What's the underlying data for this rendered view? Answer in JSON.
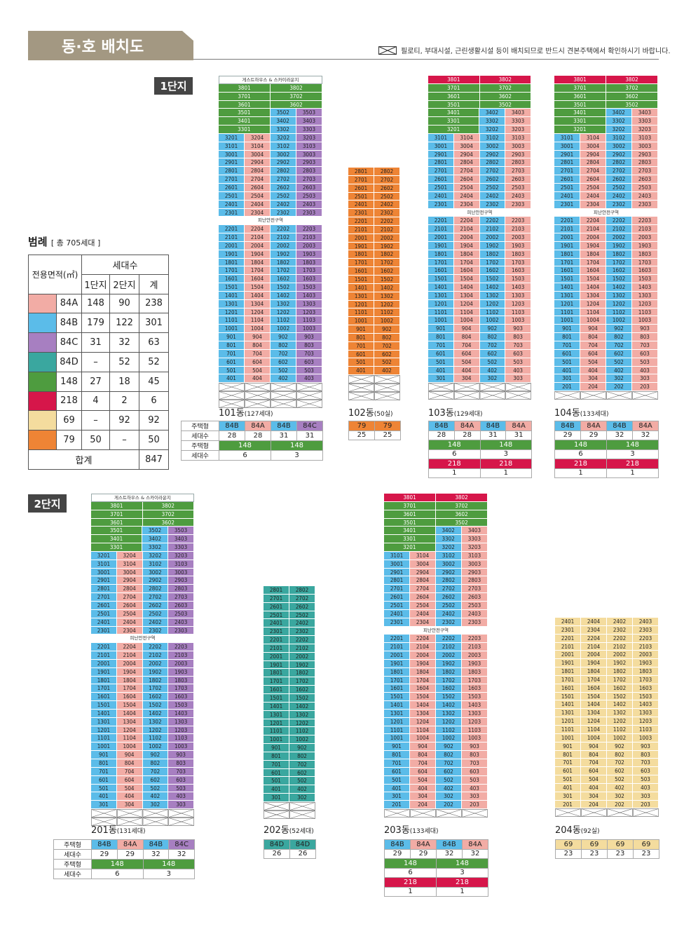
{
  "header": {
    "title": "동·호 배치도",
    "notice": "필로티, 부대시설, 근린생활시설 등이 배치되므로 반드시 견본주택에서 확인하시기 바랍니다."
  },
  "colors": {
    "84A": "#f2aca5",
    "84B": "#5bbce9",
    "84C": "#a77fc1",
    "84D": "#3aa79f",
    "148": "#4e9c3f",
    "218": "#d6164a",
    "69": "#f4dc9e",
    "79": "#ee8435"
  },
  "complexes": {
    "c1": "1단지",
    "c2": "2단지"
  },
  "legend": {
    "title": "범례",
    "total": "[ 총 705세대 ]",
    "head_area": "전용면적(㎡)",
    "head_units": "세대수",
    "head_c1": "1단지",
    "head_c2": "2단지",
    "head_total": "계",
    "rows": [
      {
        "type": "84A",
        "c1": "148",
        "c2": "90",
        "total": "238"
      },
      {
        "type": "84B",
        "c1": "179",
        "c2": "122",
        "total": "301"
      },
      {
        "type": "84C",
        "c1": "31",
        "c2": "32",
        "total": "63"
      },
      {
        "type": "84D",
        "c1": "–",
        "c2": "52",
        "total": "52"
      },
      {
        "type": "148",
        "c1": "27",
        "c2": "18",
        "total": "45"
      },
      {
        "type": "218",
        "c1": "4",
        "c2": "2",
        "total": "6"
      },
      {
        "type": "69",
        "c1": "–",
        "c2": "92",
        "total": "92"
      },
      {
        "type": "79",
        "c1": "50",
        "c2": "–",
        "total": "50"
      }
    ],
    "sum_label": "합계",
    "sum": "847"
  },
  "table_labels": {
    "type": "주택형",
    "units": "세대수"
  },
  "bar_texts": {
    "guest": "게스트하우스 & 스카이라운지",
    "refuge": "피난안전구역"
  },
  "buildings": [
    {
      "id": "101",
      "name": "101동",
      "count": "(127세대)",
      "top_bar": true,
      "low_types": [
        "84B",
        "84A",
        "84B",
        "84C"
      ],
      "top_floor": 38,
      "specials": {
        "38": [
          {
            "u": "3801",
            "t": "148",
            "s": 2
          },
          {
            "u": "3802",
            "t": "148",
            "s": 2
          }
        ],
        "37": [
          {
            "u": "3701",
            "t": "148",
            "s": 2
          },
          {
            "u": "3702",
            "t": "148",
            "s": 2
          }
        ],
        "36": [
          {
            "u": "3601",
            "t": "148",
            "s": 2
          },
          {
            "u": "3602",
            "t": "148",
            "s": 2
          }
        ],
        "35": [
          {
            "u": "3501",
            "t": "148",
            "s": 2
          },
          {
            "u": "3502",
            "t": "84B",
            "s": 1
          },
          {
            "u": "3503",
            "t": "84C",
            "s": 1
          }
        ],
        "34": [
          {
            "u": "3401",
            "t": "148",
            "s": 2
          },
          {
            "u": "3402",
            "t": "84B",
            "s": 1
          },
          {
            "u": "3403",
            "t": "84C",
            "s": 1
          }
        ],
        "33": [
          {
            "u": "3301",
            "t": "148",
            "s": 2
          },
          {
            "u": "3302",
            "t": "84B",
            "s": 1
          },
          {
            "u": "3303",
            "t": "84C",
            "s": 1
          }
        ]
      },
      "refuge_after": 23,
      "low_floor": 4,
      "pilotis": 3,
      "summary": {
        "types": [
          "84B",
          "84A",
          "84B",
          "84C"
        ],
        "units": [
          "28",
          "28",
          "31",
          "31"
        ],
        "extra": [
          {
            "type": "148",
            "units": [
              "6",
              "3"
            ]
          }
        ]
      }
    },
    {
      "id": "102",
      "name": "102동",
      "count": "(50실)",
      "top_bar": false,
      "low_types": [
        "79",
        "79"
      ],
      "top_floor": 28,
      "specials": {},
      "refuge_after": null,
      "low_floor": 4,
      "pilotis": 3,
      "summary": {
        "types": [
          "79",
          "79"
        ],
        "units": [
          "25",
          "25"
        ],
        "extra": []
      }
    },
    {
      "id": "103",
      "name": "103동",
      "count": "(129세대)",
      "top_bar": false,
      "low_types": [
        "84B",
        "84A",
        "84B",
        "84A"
      ],
      "top_floor": 38,
      "specials": {
        "38": [
          {
            "u": "3801",
            "t": "218",
            "s": 2
          },
          {
            "u": "3802",
            "t": "218",
            "s": 2
          }
        ],
        "37": [
          {
            "u": "3701",
            "t": "148",
            "s": 2
          },
          {
            "u": "3702",
            "t": "148",
            "s": 2
          }
        ],
        "36": [
          {
            "u": "3601",
            "t": "148",
            "s": 2
          },
          {
            "u": "3602",
            "t": "148",
            "s": 2
          }
        ],
        "35": [
          {
            "u": "3501",
            "t": "148",
            "s": 2
          },
          {
            "u": "3502",
            "t": "148",
            "s": 2
          }
        ],
        "34": [
          {
            "u": "3401",
            "t": "148",
            "s": 2
          },
          {
            "u": "3402",
            "t": "84B",
            "s": 1
          },
          {
            "u": "3403",
            "t": "84A",
            "s": 1
          }
        ],
        "33": [
          {
            "u": "3301",
            "t": "148",
            "s": 2
          },
          {
            "u": "3302",
            "t": "84B",
            "s": 1
          },
          {
            "u": "3303",
            "t": "84A",
            "s": 1
          }
        ],
        "32": [
          {
            "u": "3201",
            "t": "148",
            "s": 2
          },
          {
            "u": "3202",
            "t": "84B",
            "s": 1
          },
          {
            "u": "3203",
            "t": "84A",
            "s": 1
          }
        ]
      },
      "refuge_after": 23,
      "low_floor": 3,
      "pilotis": 2,
      "summary": {
        "types": [
          "84B",
          "84A",
          "84B",
          "84A"
        ],
        "units": [
          "28",
          "28",
          "31",
          "31"
        ],
        "extra": [
          {
            "type": "148",
            "units": [
              "6",
              "3"
            ]
          },
          {
            "type": "218",
            "units": [
              "1",
              "1"
            ]
          }
        ]
      }
    },
    {
      "id": "104",
      "name": "104동",
      "count": "(133세대)",
      "top_bar": false,
      "low_types": [
        "84B",
        "84A",
        "84B",
        "84A"
      ],
      "top_floor": 38,
      "specials": {
        "38": [
          {
            "u": "3801",
            "t": "218",
            "s": 2
          },
          {
            "u": "3802",
            "t": "218",
            "s": 2
          }
        ],
        "37": [
          {
            "u": "3701",
            "t": "148",
            "s": 2
          },
          {
            "u": "3702",
            "t": "148",
            "s": 2
          }
        ],
        "36": [
          {
            "u": "3601",
            "t": "148",
            "s": 2
          },
          {
            "u": "3602",
            "t": "148",
            "s": 2
          }
        ],
        "35": [
          {
            "u": "3501",
            "t": "148",
            "s": 2
          },
          {
            "u": "3502",
            "t": "148",
            "s": 2
          }
        ],
        "34": [
          {
            "u": "3401",
            "t": "148",
            "s": 2
          },
          {
            "u": "3402",
            "t": "84B",
            "s": 1
          },
          {
            "u": "3403",
            "t": "84A",
            "s": 1
          }
        ],
        "33": [
          {
            "u": "3301",
            "t": "148",
            "s": 2
          },
          {
            "u": "3302",
            "t": "84B",
            "s": 1
          },
          {
            "u": "3303",
            "t": "84A",
            "s": 1
          }
        ],
        "32": [
          {
            "u": "3201",
            "t": "148",
            "s": 2
          },
          {
            "u": "3202",
            "t": "84B",
            "s": 1
          },
          {
            "u": "3203",
            "t": "84A",
            "s": 1
          }
        ]
      },
      "refuge_after": 23,
      "low_floor": 2,
      "pilotis": 1,
      "summary": {
        "types": [
          "84B",
          "84A",
          "84B",
          "84A"
        ],
        "units": [
          "29",
          "29",
          "32",
          "32"
        ],
        "extra": [
          {
            "type": "148",
            "units": [
              "6",
              "3"
            ]
          },
          {
            "type": "218",
            "units": [
              "1",
              "1"
            ]
          }
        ]
      }
    },
    {
      "id": "201",
      "name": "201동",
      "count": "(131세대)",
      "top_bar": true,
      "low_types": [
        "84B",
        "84A",
        "84B",
        "84C"
      ],
      "top_floor": 38,
      "specials": {
        "38": [
          {
            "u": "3801",
            "t": "148",
            "s": 2
          },
          {
            "u": "3802",
            "t": "148",
            "s": 2
          }
        ],
        "37": [
          {
            "u": "3701",
            "t": "148",
            "s": 2
          },
          {
            "u": "3702",
            "t": "148",
            "s": 2
          }
        ],
        "36": [
          {
            "u": "3601",
            "t": "148",
            "s": 2
          },
          {
            "u": "3602",
            "t": "148",
            "s": 2
          }
        ],
        "35": [
          {
            "u": "3501",
            "t": "148",
            "s": 2
          },
          {
            "u": "3502",
            "t": "84B",
            "s": 1
          },
          {
            "u": "3503",
            "t": "84C",
            "s": 1
          }
        ],
        "34": [
          {
            "u": "3401",
            "t": "148",
            "s": 2
          },
          {
            "u": "3402",
            "t": "84B",
            "s": 1
          },
          {
            "u": "3403",
            "t": "84C",
            "s": 1
          }
        ],
        "33": [
          {
            "u": "3301",
            "t": "148",
            "s": 2
          },
          {
            "u": "3302",
            "t": "84B",
            "s": 1
          },
          {
            "u": "3303",
            "t": "84C",
            "s": 1
          }
        ]
      },
      "refuge_after": 23,
      "low_floor": 3,
      "pilotis": 2,
      "summary": {
        "types": [
          "84B",
          "84A",
          "84B",
          "84C"
        ],
        "units": [
          "29",
          "29",
          "32",
          "32"
        ],
        "extra": [
          {
            "type": "148",
            "units": [
              "6",
              "3"
            ]
          }
        ]
      }
    },
    {
      "id": "202",
      "name": "202동",
      "count": "(52세대)",
      "top_bar": false,
      "low_types": [
        "84D",
        "84D"
      ],
      "top_floor": 28,
      "specials": {},
      "refuge_after": null,
      "low_floor": 3,
      "pilotis": 2,
      "summary": {
        "types": [
          "84D",
          "84D"
        ],
        "units": [
          "26",
          "26"
        ],
        "extra": []
      }
    },
    {
      "id": "203",
      "name": "203동",
      "count": "(133세대)",
      "top_bar": false,
      "low_types": [
        "84B",
        "84A",
        "84B",
        "84A"
      ],
      "top_floor": 38,
      "specials": {
        "38": [
          {
            "u": "3801",
            "t": "218",
            "s": 2
          },
          {
            "u": "3802",
            "t": "218",
            "s": 2
          }
        ],
        "37": [
          {
            "u": "3701",
            "t": "148",
            "s": 2
          },
          {
            "u": "3702",
            "t": "148",
            "s": 2
          }
        ],
        "36": [
          {
            "u": "3601",
            "t": "148",
            "s": 2
          },
          {
            "u": "3602",
            "t": "148",
            "s": 2
          }
        ],
        "35": [
          {
            "u": "3501",
            "t": "148",
            "s": 2
          },
          {
            "u": "3502",
            "t": "148",
            "s": 2
          }
        ],
        "34": [
          {
            "u": "3401",
            "t": "148",
            "s": 2
          },
          {
            "u": "3402",
            "t": "84B",
            "s": 1
          },
          {
            "u": "3403",
            "t": "84A",
            "s": 1
          }
        ],
        "33": [
          {
            "u": "3301",
            "t": "148",
            "s": 2
          },
          {
            "u": "3302",
            "t": "84B",
            "s": 1
          },
          {
            "u": "3303",
            "t": "84A",
            "s": 1
          }
        ],
        "32": [
          {
            "u": "3201",
            "t": "148",
            "s": 2
          },
          {
            "u": "3202",
            "t": "84B",
            "s": 1
          },
          {
            "u": "3203",
            "t": "84A",
            "s": 1
          }
        ]
      },
      "refuge_after": 23,
      "low_floor": 2,
      "pilotis": 1,
      "summary": {
        "types": [
          "84B",
          "84A",
          "84B",
          "84A"
        ],
        "units": [
          "29",
          "29",
          "32",
          "32"
        ],
        "extra": [
          {
            "type": "148",
            "units": [
              "6",
              "3"
            ]
          },
          {
            "type": "218",
            "units": [
              "1",
              "1"
            ]
          }
        ]
      }
    },
    {
      "id": "204",
      "name": "204동",
      "count": "(92실)",
      "top_bar": false,
      "low_types": [
        "69",
        "69",
        "69",
        "69"
      ],
      "top_floor": 24,
      "specials": {},
      "refuge_after": null,
      "low_floor": 2,
      "pilotis": 1,
      "summary": {
        "types": [
          "69",
          "69",
          "69",
          "69"
        ],
        "units": [
          "23",
          "23",
          "23",
          "23"
        ],
        "extra": []
      }
    }
  ]
}
